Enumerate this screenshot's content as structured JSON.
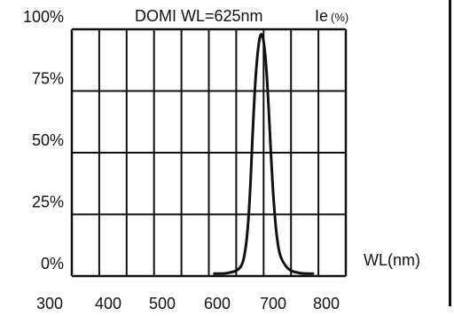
{
  "chart_data": {
    "type": "line",
    "title": "DOMI WL=625nm",
    "ylabel": "Ie",
    "ylabel_unit": "(%)",
    "xlabel": "WL(nm)",
    "x_ticks": [
      "300",
      "400",
      "500",
      "600",
      "700",
      "800"
    ],
    "y_ticks": [
      "0%",
      "25%",
      "50%",
      "75%",
      "100%"
    ],
    "xlim": [
      300,
      800
    ],
    "ylim": [
      0,
      100
    ],
    "grid": true,
    "series": [
      {
        "x": [
          560,
          580,
          590,
          600,
          610,
          615,
          620,
          625,
          630,
          635,
          640,
          645,
          650,
          655,
          660,
          665,
          670,
          675,
          680,
          690,
          700,
          710,
          720,
          740
        ],
        "y": [
          1,
          1,
          1.5,
          2,
          4,
          8,
          16,
          32,
          58,
          80,
          93,
          99,
          96,
          85,
          65,
          42,
          25,
          14,
          8,
          4,
          2,
          1.5,
          1,
          1
        ]
      }
    ]
  }
}
